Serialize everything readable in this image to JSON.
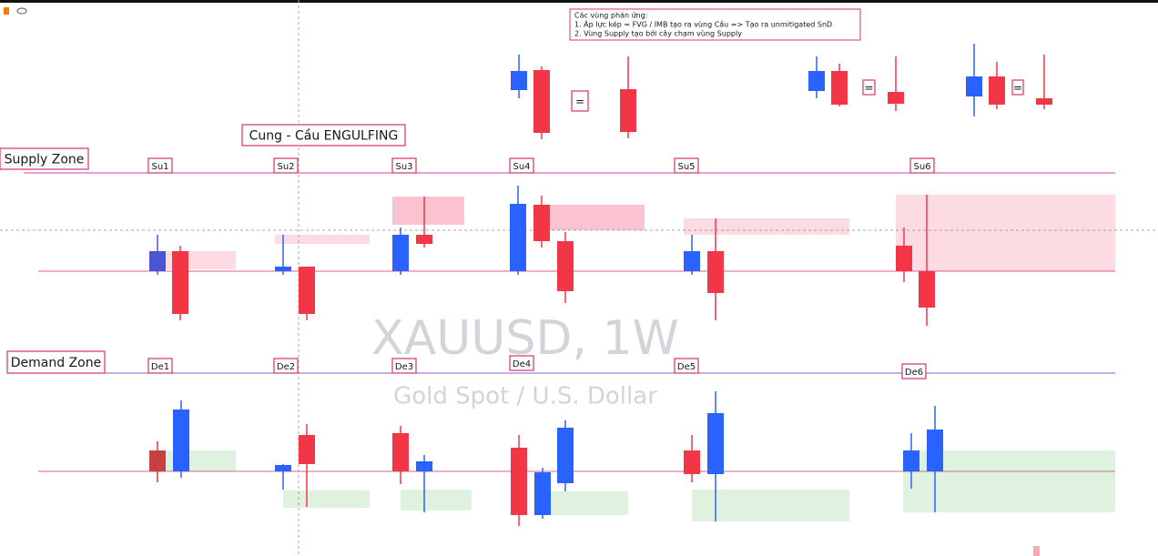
{
  "annotation": {
    "title": "Các vùng phản ứng:",
    "lines": [
      "1. Áp lực kép = FVG / IMB tạo ra vùng Cầu => Tạo ra unmitigated SnD",
      "2. Vùng Supply tạo bởi cây chạm vùng Supply"
    ]
  },
  "equals": [
    "=",
    "=",
    "="
  ],
  "headline": "Cung - Cầu ENGULFING",
  "supply_zone": {
    "label": "Supply Zone",
    "markers": [
      "Su1",
      "Su2",
      "Su3",
      "Su4",
      "Su5",
      "Su6"
    ]
  },
  "demand_zone": {
    "label": "Demand Zone",
    "markers": [
      "De1",
      "De2",
      "De3",
      "De4",
      "De5",
      "De6"
    ]
  },
  "watermark": {
    "symbol": "XAUUSD, 1W",
    "description": "Gold Spot / U.S. Dollar"
  }
}
